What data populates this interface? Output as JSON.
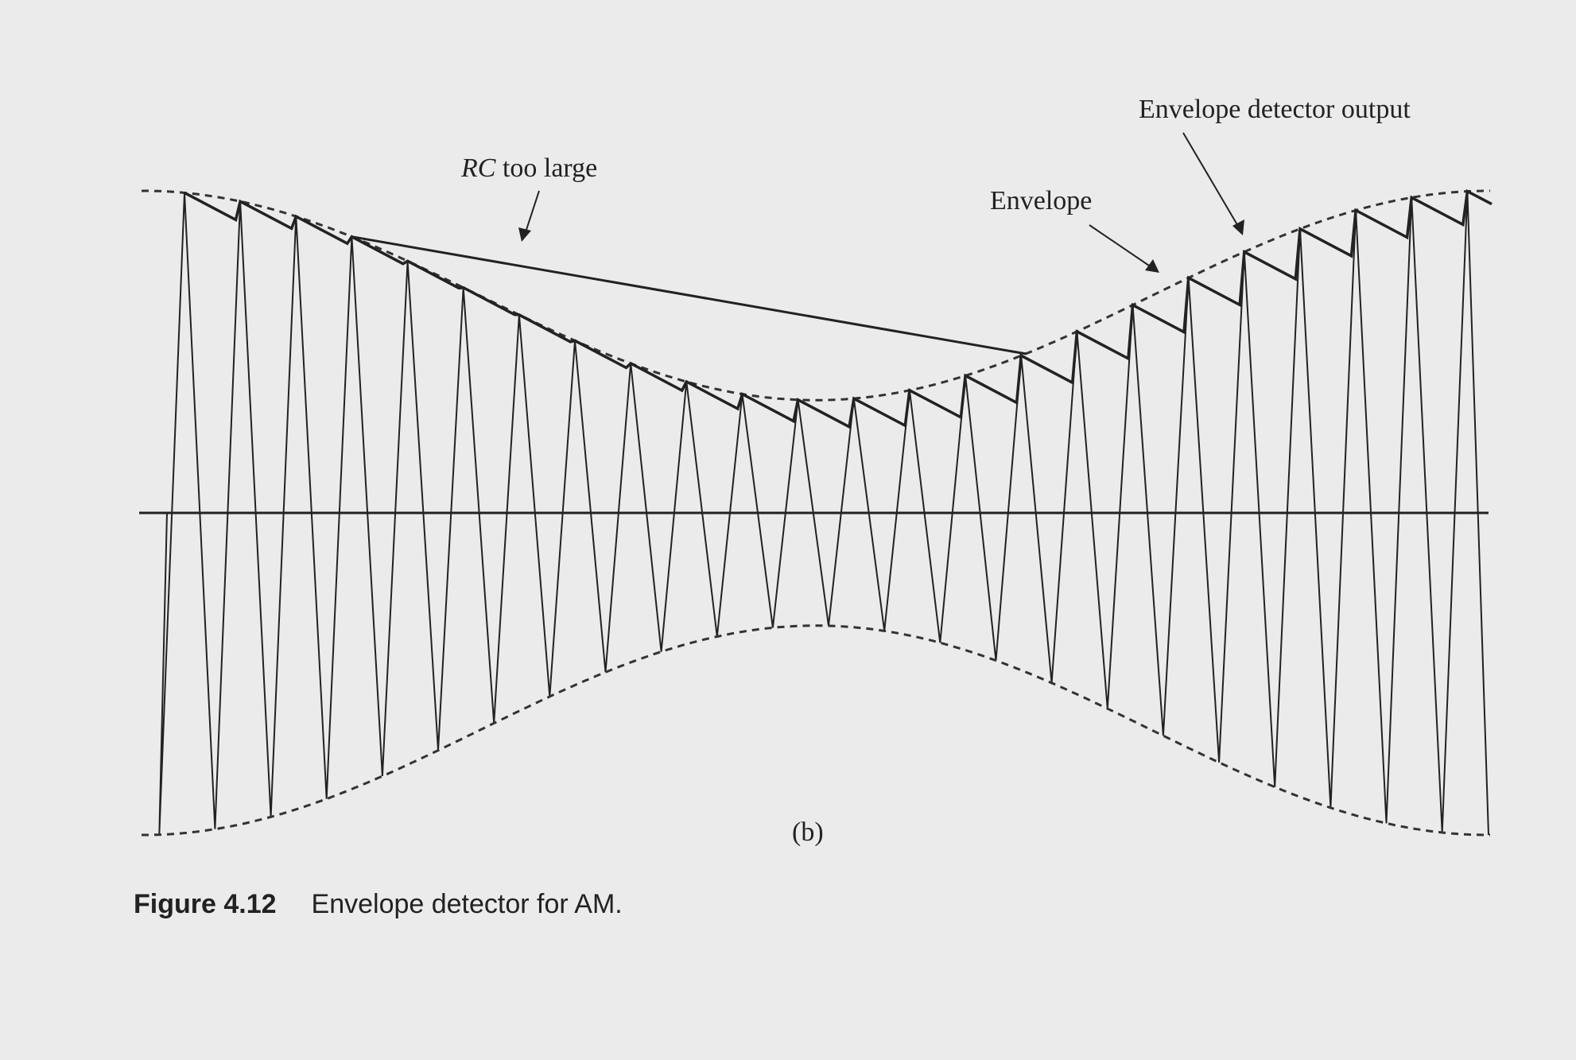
{
  "labels": {
    "rc_too_large_italic": "RC",
    "rc_too_large_rest": " too large",
    "envelope": "Envelope",
    "envelope_detector_output": "Envelope detector output",
    "subfigure": "(b)"
  },
  "caption": {
    "number": "Figure 4.12",
    "text": "Envelope detector for AM."
  },
  "signal": {
    "carrier_cycles": 24,
    "envelope_max": 1.0,
    "envelope_min": 0.35,
    "modulation": "one full cosine period of the message across the plot",
    "line_color": "#222222"
  }
}
